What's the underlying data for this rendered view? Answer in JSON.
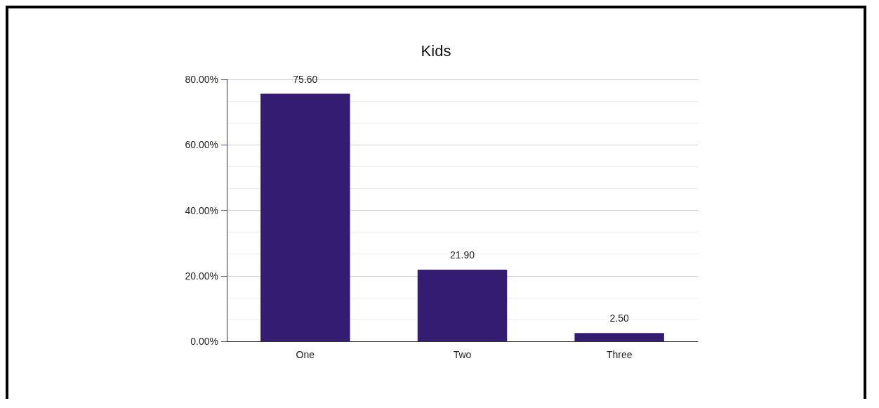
{
  "chart_data": {
    "type": "bar",
    "title": "Kids",
    "categories": [
      "One",
      "Two",
      "Three"
    ],
    "values": [
      75.6,
      21.9,
      2.5
    ],
    "value_labels": [
      "75.60",
      "21.90",
      "2.50"
    ],
    "color": "#341c72",
    "ylim": [
      0,
      80
    ],
    "yticks": [
      {
        "value": 0,
        "label": "0.00%"
      },
      {
        "value": 20,
        "label": "20.00%"
      },
      {
        "value": 40,
        "label": "40.00%"
      },
      {
        "value": 60,
        "label": "60.00%"
      },
      {
        "value": 80,
        "label": "80.00%"
      }
    ],
    "grid": "y"
  }
}
